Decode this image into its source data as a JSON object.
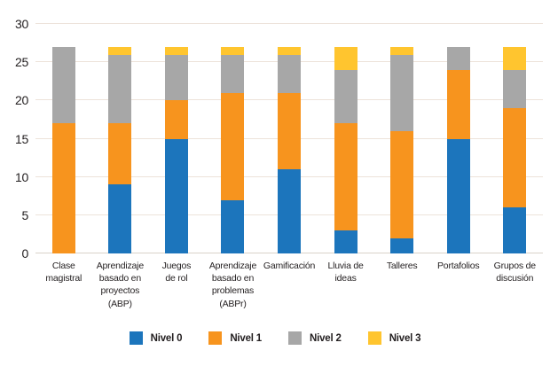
{
  "chart_data": {
    "type": "bar",
    "stacked": true,
    "title": "",
    "categories": [
      "Clase\nmagistral",
      "Aprendizaje\nbasado en\nproyectos\n(ABP)",
      "Juegos\nde rol",
      "Aprendizaje\nbasado en\nproblemas\n(ABPr)",
      "Gamificación",
      "Lluvia de\nideas",
      "Talleres",
      "Portafolios",
      "Grupos de\ndiscusión"
    ],
    "series": [
      {
        "name": "Nivel 0",
        "color": "#1c75bc",
        "values": [
          0,
          9,
          15,
          7,
          11,
          3,
          2,
          15,
          6
        ]
      },
      {
        "name": "Nivel 1",
        "color": "#f7941e",
        "values": [
          17,
          8,
          5,
          14,
          10,
          14,
          14,
          9,
          13
        ]
      },
      {
        "name": "Nivel 2",
        "color": "#a7a7a7",
        "values": [
          10,
          9,
          6,
          5,
          5,
          7,
          10,
          3,
          5
        ]
      },
      {
        "name": "Nivel 3",
        "color": "#ffc52f",
        "values": [
          0,
          1,
          1,
          1,
          1,
          3,
          1,
          0,
          3
        ]
      }
    ],
    "ylim": [
      0,
      30
    ],
    "yticks": [
      0,
      5,
      10,
      15,
      20,
      25,
      30
    ],
    "grid": true,
    "gridline_color": "#ede3da",
    "text_color": "#231f20",
    "legend_position": "bottom"
  }
}
